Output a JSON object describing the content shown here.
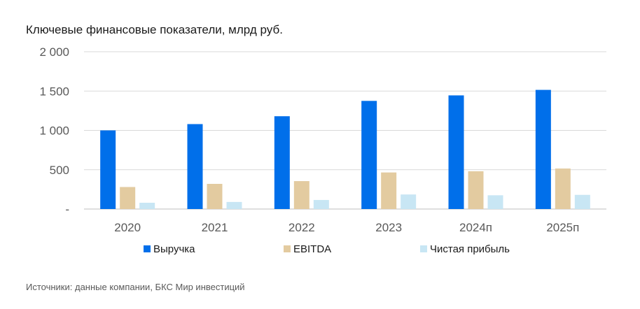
{
  "title": "Ключевые финансовые показатели, млрд руб.",
  "source": "Источники: данные компании, БКС Мир инвестиций",
  "chart_data": {
    "type": "bar",
    "title": "Ключевые финансовые показатели, млрд руб.",
    "xlabel": "",
    "ylabel": "",
    "categories": [
      "2020",
      "2021",
      "2022",
      "2023",
      "2024п",
      "2025п"
    ],
    "ylim": [
      0,
      2000
    ],
    "yticks": [
      0,
      500,
      1000,
      1500,
      2000
    ],
    "ytick_labels": [
      "-",
      "500",
      "1 000",
      "1 500",
      "2 000"
    ],
    "grid": true,
    "legend_position": "bottom",
    "series": [
      {
        "name": "Выручка",
        "color": "#006FEA",
        "values": [
          1000,
          1080,
          1180,
          1375,
          1445,
          1515
        ]
      },
      {
        "name": "EBITDA",
        "color": "#E3CBA0",
        "values": [
          280,
          320,
          355,
          465,
          480,
          515
        ]
      },
      {
        "name": "Чистая прибыль",
        "color": "#C8E6F4",
        "values": [
          80,
          90,
          115,
          185,
          175,
          180
        ]
      }
    ]
  }
}
